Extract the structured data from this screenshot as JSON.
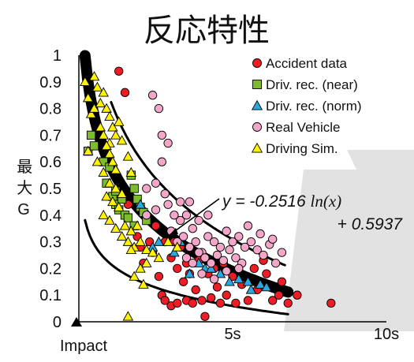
{
  "colors": {
    "accident": "#ee1c24",
    "near": "#7dbd2c",
    "norm": "#2aa8e0",
    "real": "#f4a6c8",
    "sim": "#fff200",
    "fit": "#000000"
  },
  "chart_data": {
    "type": "scatter",
    "title": "反応特性",
    "xlabel": "Impact",
    "ylabel": "最大G",
    "xlim": [
      0,
      10
    ],
    "ylim": [
      0,
      1
    ],
    "x_ticks": [
      {
        "v": 5,
        "label": "5s"
      },
      {
        "v": 10,
        "label": "10s"
      }
    ],
    "y_ticks": [
      {
        "v": 0,
        "label": "0"
      },
      {
        "v": 0.1,
        "label": "0.1"
      },
      {
        "v": 0.2,
        "label": "0.2"
      },
      {
        "v": 0.3,
        "label": "0.3"
      },
      {
        "v": 0.4,
        "label": "0.4"
      },
      {
        "v": 0.5,
        "label": "0.5"
      },
      {
        "v": 0.6,
        "label": "0.6"
      },
      {
        "v": 0.7,
        "label": "0.7"
      },
      {
        "v": 0.8,
        "label": "0.8"
      },
      {
        "v": 0.9,
        "label": "0.9"
      },
      {
        "v": 1,
        "label": "1"
      }
    ],
    "grid": false,
    "legend_position": "top-right",
    "equation": {
      "line1_prefix": "y = -0.2516 ",
      "line1_func": "ln(x)",
      "line2": "+ 0.5937",
      "a": -0.2516,
      "b": 0.5937
    },
    "upper_envelope": {
      "a": -0.33,
      "b": 0.84
    },
    "lower_envelope": {
      "a": -0.1,
      "b": 0.22
    },
    "fit_range": [
      0.2,
      6.8
    ],
    "series": [
      {
        "name": "Accident data",
        "marker": "circle",
        "color": "#ee1c24",
        "points": [
          [
            1.3,
            0.94
          ],
          [
            1.5,
            0.86
          ],
          [
            1.6,
            0.44
          ],
          [
            1.9,
            0.32
          ],
          [
            2.0,
            0.28
          ],
          [
            2.1,
            0.22
          ],
          [
            2.3,
            0.3
          ],
          [
            2.4,
            0.26
          ],
          [
            2.5,
            0.36
          ],
          [
            2.6,
            0.17
          ],
          [
            2.7,
            0.1
          ],
          [
            2.8,
            0.08
          ],
          [
            2.8,
            0.3
          ],
          [
            3.0,
            0.06
          ],
          [
            3.0,
            0.24
          ],
          [
            3.1,
            0.3
          ],
          [
            3.2,
            0.2
          ],
          [
            3.2,
            0.07
          ],
          [
            3.3,
            0.28
          ],
          [
            3.4,
            0.15
          ],
          [
            3.5,
            0.08
          ],
          [
            3.5,
            0.22
          ],
          [
            3.6,
            0.18
          ],
          [
            3.7,
            0.07
          ],
          [
            3.8,
            0.12
          ],
          [
            3.9,
            0.23
          ],
          [
            4.0,
            0.08
          ],
          [
            4.1,
            0.02
          ],
          [
            4.2,
            0.18
          ],
          [
            4.3,
            0.09
          ],
          [
            4.4,
            0.2
          ],
          [
            4.5,
            0.13
          ],
          [
            4.6,
            0.07
          ],
          [
            4.7,
            0.22
          ],
          [
            4.8,
            0.1
          ],
          [
            5.0,
            0.17
          ],
          [
            5.1,
            0.07
          ],
          [
            5.3,
            0.14
          ],
          [
            5.5,
            0.08
          ],
          [
            5.7,
            0.2
          ],
          [
            5.8,
            0.12
          ],
          [
            6.0,
            0.23
          ],
          [
            6.1,
            0.18
          ],
          [
            6.3,
            0.08
          ],
          [
            6.5,
            0.1
          ],
          [
            6.6,
            0.15
          ],
          [
            6.8,
            0.07
          ],
          [
            7.1,
            0.1
          ],
          [
            8.2,
            0.07
          ]
        ]
      },
      {
        "name": "Driv. rec. (near)",
        "marker": "square",
        "color": "#7dbd2c",
        "points": [
          [
            0.3,
            0.64
          ],
          [
            0.4,
            0.7
          ],
          [
            0.5,
            0.66
          ],
          [
            0.8,
            0.6
          ],
          [
            0.9,
            0.52
          ],
          [
            1.0,
            0.58
          ],
          [
            1.1,
            0.47
          ],
          [
            1.2,
            0.49
          ],
          [
            1.2,
            0.44
          ],
          [
            1.3,
            0.42
          ],
          [
            1.4,
            0.46
          ],
          [
            1.5,
            0.4
          ],
          [
            1.6,
            0.39
          ],
          [
            1.7,
            0.55
          ],
          [
            1.8,
            0.5
          ],
          [
            1.9,
            0.46
          ],
          [
            2.0,
            0.43
          ],
          [
            2.1,
            0.41
          ],
          [
            1.8,
            0.36
          ],
          [
            2.2,
            0.38
          ]
        ]
      },
      {
        "name": "Driv. rec. (norm)",
        "marker": "triangle",
        "color": "#2aa8e0",
        "points": [
          [
            2.0,
            0.44
          ],
          [
            2.4,
            0.28
          ],
          [
            2.6,
            0.3
          ],
          [
            3.1,
            0.26
          ],
          [
            3.3,
            0.3
          ],
          [
            3.6,
            0.18
          ],
          [
            3.9,
            0.22
          ],
          [
            4.1,
            0.2
          ],
          [
            4.3,
            0.2
          ],
          [
            4.6,
            0.18
          ],
          [
            4.9,
            0.15
          ],
          [
            5.2,
            0.16
          ],
          [
            5.5,
            0.15
          ],
          [
            5.6,
            0.12
          ],
          [
            5.9,
            0.14
          ],
          [
            6.1,
            0.13
          ]
        ]
      },
      {
        "name": "Real Vehicle",
        "marker": "circle",
        "color": "#f4a6c8",
        "points": [
          [
            2.4,
            0.85
          ],
          [
            2.6,
            0.8
          ],
          [
            2.7,
            0.7
          ],
          [
            2.9,
            0.67
          ],
          [
            2.7,
            0.6
          ],
          [
            2.2,
            0.5
          ],
          [
            2.5,
            0.52
          ],
          [
            2.8,
            0.48
          ],
          [
            2.2,
            0.4
          ],
          [
            2.5,
            0.42
          ],
          [
            2.9,
            0.44
          ],
          [
            3.1,
            0.4
          ],
          [
            3.3,
            0.38
          ],
          [
            3.5,
            0.4
          ],
          [
            3.7,
            0.35
          ],
          [
            3.9,
            0.38
          ],
          [
            3.0,
            0.34
          ],
          [
            3.2,
            0.3
          ],
          [
            3.4,
            0.32
          ],
          [
            3.6,
            0.28
          ],
          [
            3.8,
            0.3
          ],
          [
            4.0,
            0.26
          ],
          [
            4.2,
            0.32
          ],
          [
            4.4,
            0.3
          ],
          [
            4.6,
            0.28
          ],
          [
            4.8,
            0.34
          ],
          [
            5.0,
            0.3
          ],
          [
            5.2,
            0.32
          ],
          [
            5.4,
            0.28
          ],
          [
            3.5,
            0.24
          ],
          [
            3.7,
            0.22
          ],
          [
            3.9,
            0.26
          ],
          [
            4.1,
            0.24
          ],
          [
            4.3,
            0.22
          ],
          [
            4.5,
            0.25
          ],
          [
            4.7,
            0.23
          ],
          [
            4.9,
            0.27
          ],
          [
            5.1,
            0.24
          ],
          [
            5.3,
            0.22
          ],
          [
            5.6,
            0.3
          ],
          [
            5.8,
            0.27
          ],
          [
            6.0,
            0.25
          ],
          [
            6.2,
            0.29
          ],
          [
            6.4,
            0.22
          ],
          [
            4.0,
            0.18
          ],
          [
            4.4,
            0.16
          ],
          [
            4.8,
            0.19
          ],
          [
            5.2,
            0.2
          ],
          [
            5.5,
            0.36
          ],
          [
            5.9,
            0.33
          ],
          [
            6.3,
            0.31
          ],
          [
            6.6,
            0.26
          ],
          [
            3.3,
            0.45
          ],
          [
            3.6,
            0.45
          ],
          [
            4.2,
            0.4
          ]
        ]
      },
      {
        "name": "Driving Sim.",
        "marker": "triangle",
        "color": "#fff200",
        "points": [
          [
            0.2,
            0.9
          ],
          [
            0.3,
            0.84
          ],
          [
            0.4,
            0.78
          ],
          [
            0.5,
            0.92
          ],
          [
            0.6,
            0.88
          ],
          [
            0.5,
            0.8
          ],
          [
            0.7,
            0.82
          ],
          [
            0.8,
            0.86
          ],
          [
            0.9,
            0.8
          ],
          [
            1.0,
            0.77
          ],
          [
            1.1,
            0.73
          ],
          [
            1.0,
            0.67
          ],
          [
            1.2,
            0.7
          ],
          [
            1.3,
            0.75
          ],
          [
            1.4,
            0.68
          ],
          [
            0.7,
            0.73
          ],
          [
            0.8,
            0.7
          ],
          [
            0.9,
            0.66
          ],
          [
            1.0,
            0.63
          ],
          [
            1.1,
            0.6
          ],
          [
            1.2,
            0.57
          ],
          [
            0.3,
            0.64
          ],
          [
            0.6,
            0.6
          ],
          [
            0.8,
            0.56
          ],
          [
            1.0,
            0.52
          ],
          [
            1.2,
            0.5
          ],
          [
            1.4,
            0.48
          ],
          [
            0.9,
            0.47
          ],
          [
            1.1,
            0.45
          ],
          [
            1.3,
            0.43
          ],
          [
            0.8,
            0.4
          ],
          [
            1.0,
            0.38
          ],
          [
            1.2,
            0.35
          ],
          [
            1.5,
            0.36
          ],
          [
            1.7,
            0.34
          ],
          [
            1.9,
            0.36
          ],
          [
            1.6,
            0.3
          ],
          [
            1.8,
            0.28
          ],
          [
            2.0,
            0.3
          ],
          [
            2.2,
            0.27
          ],
          [
            2.4,
            0.26
          ],
          [
            2.6,
            0.24
          ],
          [
            2.2,
            0.22
          ],
          [
            2.0,
            0.2
          ],
          [
            1.8,
            0.17
          ],
          [
            2.1,
            0.14
          ],
          [
            1.7,
            0.27
          ],
          [
            1.4,
            0.32
          ],
          [
            1.6,
            0.62
          ],
          [
            1.7,
            0.56
          ],
          [
            2.9,
            0.3
          ],
          [
            3.2,
            0.28
          ],
          [
            1.6,
            0.02
          ]
        ]
      }
    ]
  }
}
